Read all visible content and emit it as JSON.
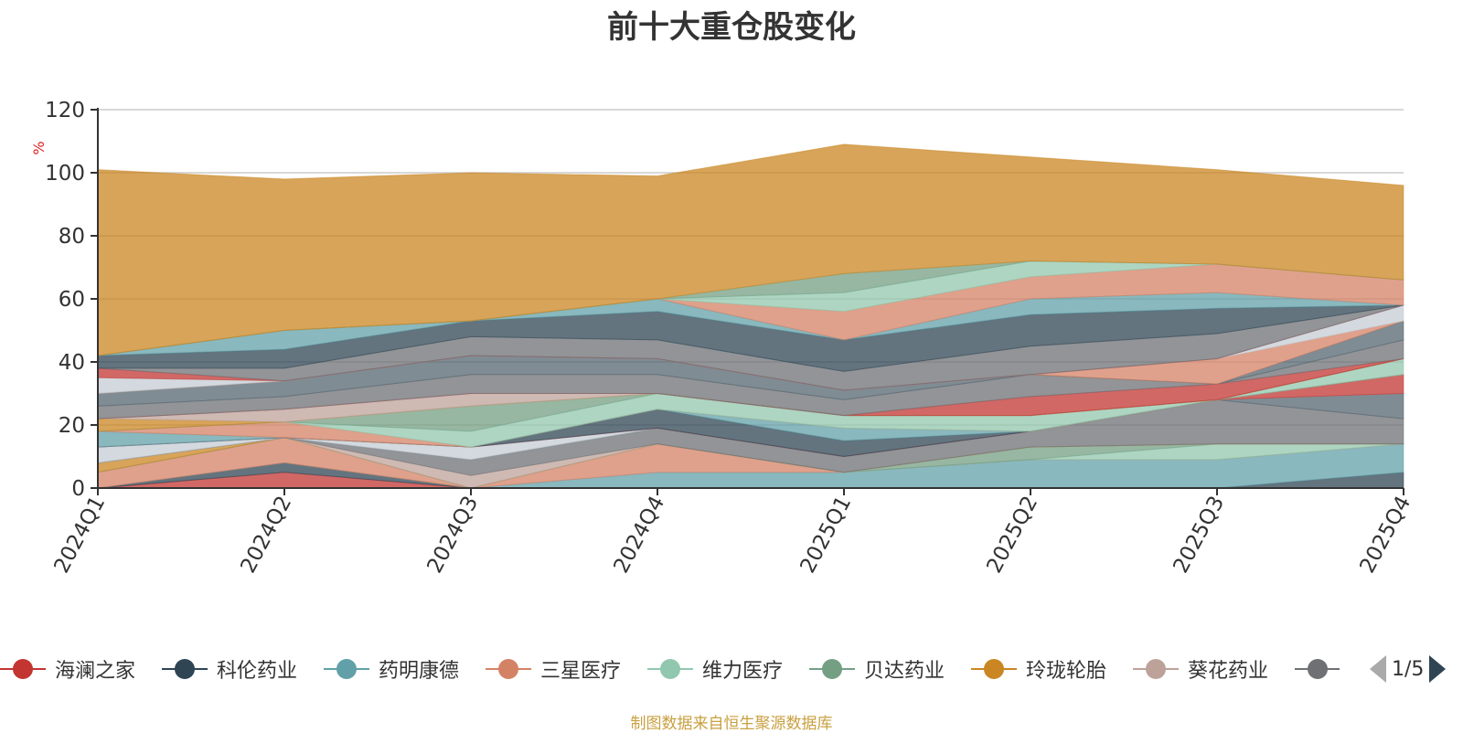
{
  "title": "前十大重仓股变化",
  "source_note": "制图数据来自恒生聚源数据库",
  "legend_page": "1/5",
  "chart_data": {
    "type": "area",
    "stacked": true,
    "title": "前十大重仓股变化",
    "ylabel": "%",
    "ylim": [
      0,
      120
    ],
    "yticks": [
      0,
      20,
      40,
      60,
      80,
      100,
      120
    ],
    "categories": [
      "2024Q1",
      "2024Q2",
      "2024Q3",
      "2024Q4",
      "2025Q1",
      "2025Q2",
      "2025Q3",
      "2025Q4"
    ],
    "legend_position": "bottom",
    "series": [
      {
        "name": "海澜之家",
        "color": "#c23531",
        "values": [
          0,
          5,
          0,
          0,
          0,
          0,
          0,
          0
        ]
      },
      {
        "name": "科伦药业",
        "color": "#2f4554",
        "values": [
          0,
          3,
          0,
          0,
          0,
          0,
          0,
          5
        ]
      },
      {
        "name": "药明康德",
        "color": "#61a0a8",
        "values": [
          0,
          0,
          0,
          5,
          5,
          9,
          9,
          9
        ]
      },
      {
        "name": "三星医疗",
        "color": "#d48265",
        "values": [
          5,
          8,
          0,
          9,
          0,
          0,
          0,
          0
        ]
      },
      {
        "name": "维力医疗",
        "color": "#91c7ae",
        "values": [
          0,
          0,
          0,
          0,
          0,
          0,
          5,
          0
        ]
      },
      {
        "name": "贝达药业",
        "color": "#749f83",
        "values": [
          0,
          0,
          0,
          0,
          0,
          4,
          0,
          0
        ]
      },
      {
        "name": "玲珑轮胎",
        "color": "#ca8622",
        "values": [
          3,
          0,
          0,
          0,
          0,
          0,
          0,
          0
        ]
      },
      {
        "name": "葵花药业",
        "color": "#bda29a",
        "values": [
          0,
          0,
          4,
          0,
          0,
          0,
          0,
          0
        ]
      },
      {
        "name": "",
        "color": "#6e7074",
        "values": [
          0,
          0,
          5,
          5,
          5,
          5,
          14,
          8
        ]
      },
      {
        "name": "",
        "color": "#546570",
        "values": [
          0,
          0,
          0,
          0,
          0,
          0,
          0,
          8
        ]
      },
      {
        "name": "",
        "color": "#c4ccd3",
        "values": [
          5,
          0,
          4,
          0,
          0,
          0,
          0,
          0
        ]
      },
      {
        "name": "",
        "color": "#c23531",
        "values": [
          0,
          0,
          0,
          0,
          0,
          0,
          0,
          6
        ]
      },
      {
        "name": "",
        "color": "#2f4554",
        "values": [
          0,
          0,
          0,
          6,
          5,
          0,
          0,
          0
        ]
      },
      {
        "name": "",
        "color": "#61a0a8",
        "values": [
          5,
          0,
          0,
          0,
          4,
          0,
          0,
          0
        ]
      },
      {
        "name": "",
        "color": "#d48265",
        "values": [
          0,
          5,
          0,
          0,
          0,
          0,
          0,
          0
        ]
      },
      {
        "name": "",
        "color": "#91c7ae",
        "values": [
          0,
          0,
          5,
          5,
          4,
          5,
          0,
          5
        ]
      },
      {
        "name": "",
        "color": "#749f83",
        "values": [
          0,
          0,
          8,
          0,
          0,
          0,
          0,
          0
        ]
      },
      {
        "name": "",
        "color": "#ca8622",
        "values": [
          4,
          0,
          0,
          0,
          0,
          0,
          0,
          0
        ]
      },
      {
        "name": "",
        "color": "#bda29a",
        "values": [
          0,
          4,
          4,
          0,
          0,
          0,
          0,
          0
        ]
      },
      {
        "name": "",
        "color": "#c23531",
        "values": [
          0,
          0,
          0,
          0,
          0,
          6,
          5,
          0
        ]
      },
      {
        "name": "",
        "color": "#6e7074",
        "values": [
          4,
          4,
          6,
          6,
          5,
          7,
          0,
          6
        ]
      },
      {
        "name": "",
        "color": "#546570",
        "values": [
          4,
          5,
          6,
          5,
          3,
          0,
          0,
          6
        ]
      },
      {
        "name": "",
        "color": "#d48265",
        "values": [
          0,
          0,
          0,
          0,
          0,
          0,
          8,
          0
        ]
      },
      {
        "name": "",
        "color": "#c4ccd3",
        "values": [
          5,
          0,
          0,
          0,
          0,
          0,
          0,
          5
        ]
      },
      {
        "name": "",
        "color": "#c23531",
        "values": [
          3,
          0,
          0,
          0,
          0,
          0,
          0,
          0
        ]
      },
      {
        "name": "",
        "color": "#6e7074",
        "values": [
          0,
          4,
          6,
          6,
          6,
          9,
          8,
          0
        ]
      },
      {
        "name": "",
        "color": "#2f4554",
        "values": [
          4,
          6,
          5,
          9,
          10,
          10,
          8,
          0
        ]
      },
      {
        "name": "",
        "color": "#61a0a8",
        "values": [
          0,
          6,
          0,
          4,
          0,
          5,
          5,
          0
        ]
      },
      {
        "name": "",
        "color": "#d48265",
        "values": [
          0,
          0,
          0,
          0,
          9,
          7,
          9,
          8
        ]
      },
      {
        "name": "",
        "color": "#91c7ae",
        "values": [
          0,
          0,
          0,
          0,
          6,
          5,
          0,
          0
        ]
      },
      {
        "name": "",
        "color": "#749f83",
        "values": [
          0,
          0,
          0,
          0,
          6,
          0,
          0,
          0
        ]
      },
      {
        "name": "",
        "color": "#ca8622",
        "values": [
          59,
          48,
          47,
          39,
          41,
          33,
          30,
          30
        ]
      }
    ]
  }
}
